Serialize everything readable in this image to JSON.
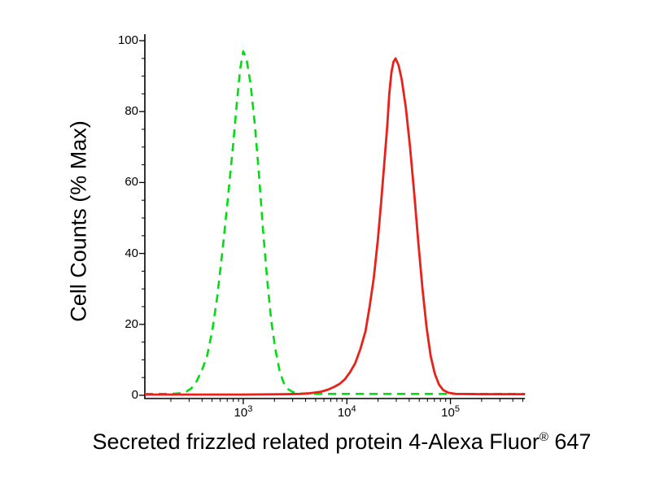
{
  "chart_data": {
    "type": "line",
    "subtype": "flow-cytometry-histogram",
    "title": "",
    "xlabel_main": "Secreted frizzled related protein 4-Alexa Fluor",
    "xlabel_sup": "®",
    "xlabel_suffix": " 647",
    "ylabel": "Cell Counts (% Max)",
    "x_scale": "log",
    "x_range_log10": [
      2.05,
      5.72
    ],
    "ylim": [
      0,
      100
    ],
    "grid": false,
    "legend": "none",
    "axis_color": "#000000",
    "y_ticks": [
      "0",
      "20",
      "40",
      "60",
      "80",
      "100"
    ],
    "y_tick_values": [
      0,
      20,
      40,
      60,
      80,
      100
    ],
    "y_minor_step": 5,
    "x_major_ticks": [
      {
        "base": "10",
        "exp": "3",
        "log10": 3
      },
      {
        "base": "10",
        "exp": "4",
        "log10": 4
      },
      {
        "base": "10",
        "exp": "5",
        "log10": 5
      }
    ],
    "series": [
      {
        "name": "green-dashed-control",
        "color": "#00dd11",
        "dash": [
          10,
          7
        ],
        "width": 2.6,
        "peak_x_log10": 3.0,
        "peak_pct": 97,
        "points_log10_pct": [
          [
            2.05,
            0.4
          ],
          [
            2.3,
            0.4
          ],
          [
            2.4,
            0.6
          ],
          [
            2.45,
            1
          ],
          [
            2.5,
            2
          ],
          [
            2.55,
            4
          ],
          [
            2.6,
            7
          ],
          [
            2.65,
            11
          ],
          [
            2.7,
            18
          ],
          [
            2.75,
            28
          ],
          [
            2.8,
            41
          ],
          [
            2.85,
            55
          ],
          [
            2.9,
            70
          ],
          [
            2.94,
            83
          ],
          [
            2.97,
            92
          ],
          [
            3.0,
            97
          ],
          [
            3.03,
            95
          ],
          [
            3.07,
            88
          ],
          [
            3.11,
            77
          ],
          [
            3.15,
            63
          ],
          [
            3.19,
            47
          ],
          [
            3.23,
            33
          ],
          [
            3.27,
            21
          ],
          [
            3.31,
            13
          ],
          [
            3.35,
            7
          ],
          [
            3.39,
            3.5
          ],
          [
            3.43,
            1.8
          ],
          [
            3.48,
            0.9
          ],
          [
            3.55,
            0.5
          ],
          [
            3.7,
            0.4
          ],
          [
            4.0,
            0.4
          ],
          [
            4.4,
            0.4
          ],
          [
            4.8,
            0.4
          ],
          [
            5.2,
            0.4
          ],
          [
            5.6,
            0.4
          ],
          [
            5.72,
            0.4
          ]
        ]
      },
      {
        "name": "red-solid-stained",
        "color": "#e8211b",
        "dash": [],
        "width": 2.8,
        "peak_x_log10": 4.47,
        "peak_pct": 95,
        "points_log10_pct": [
          [
            2.05,
            0.2
          ],
          [
            2.5,
            0.2
          ],
          [
            3.0,
            0.2
          ],
          [
            3.4,
            0.3
          ],
          [
            3.55,
            0.4
          ],
          [
            3.65,
            0.6
          ],
          [
            3.75,
            1
          ],
          [
            3.82,
            1.6
          ],
          [
            3.88,
            2.4
          ],
          [
            3.93,
            3.2
          ],
          [
            3.98,
            4.5
          ],
          [
            4.03,
            6.5
          ],
          [
            4.08,
            9
          ],
          [
            4.13,
            13
          ],
          [
            4.18,
            18
          ],
          [
            4.22,
            25
          ],
          [
            4.26,
            33
          ],
          [
            4.3,
            44
          ],
          [
            4.33,
            54
          ],
          [
            4.36,
            65
          ],
          [
            4.39,
            76
          ],
          [
            4.41,
            85
          ],
          [
            4.43,
            91
          ],
          [
            4.45,
            94
          ],
          [
            4.47,
            95
          ],
          [
            4.5,
            93
          ],
          [
            4.53,
            89
          ],
          [
            4.57,
            81
          ],
          [
            4.61,
            70
          ],
          [
            4.65,
            57
          ],
          [
            4.69,
            43
          ],
          [
            4.73,
            30
          ],
          [
            4.77,
            19
          ],
          [
            4.81,
            11
          ],
          [
            4.85,
            6
          ],
          [
            4.89,
            3
          ],
          [
            4.93,
            1.5
          ],
          [
            4.98,
            0.7
          ],
          [
            5.05,
            0.4
          ],
          [
            5.3,
            0.3
          ],
          [
            5.72,
            0.3
          ]
        ]
      }
    ]
  }
}
